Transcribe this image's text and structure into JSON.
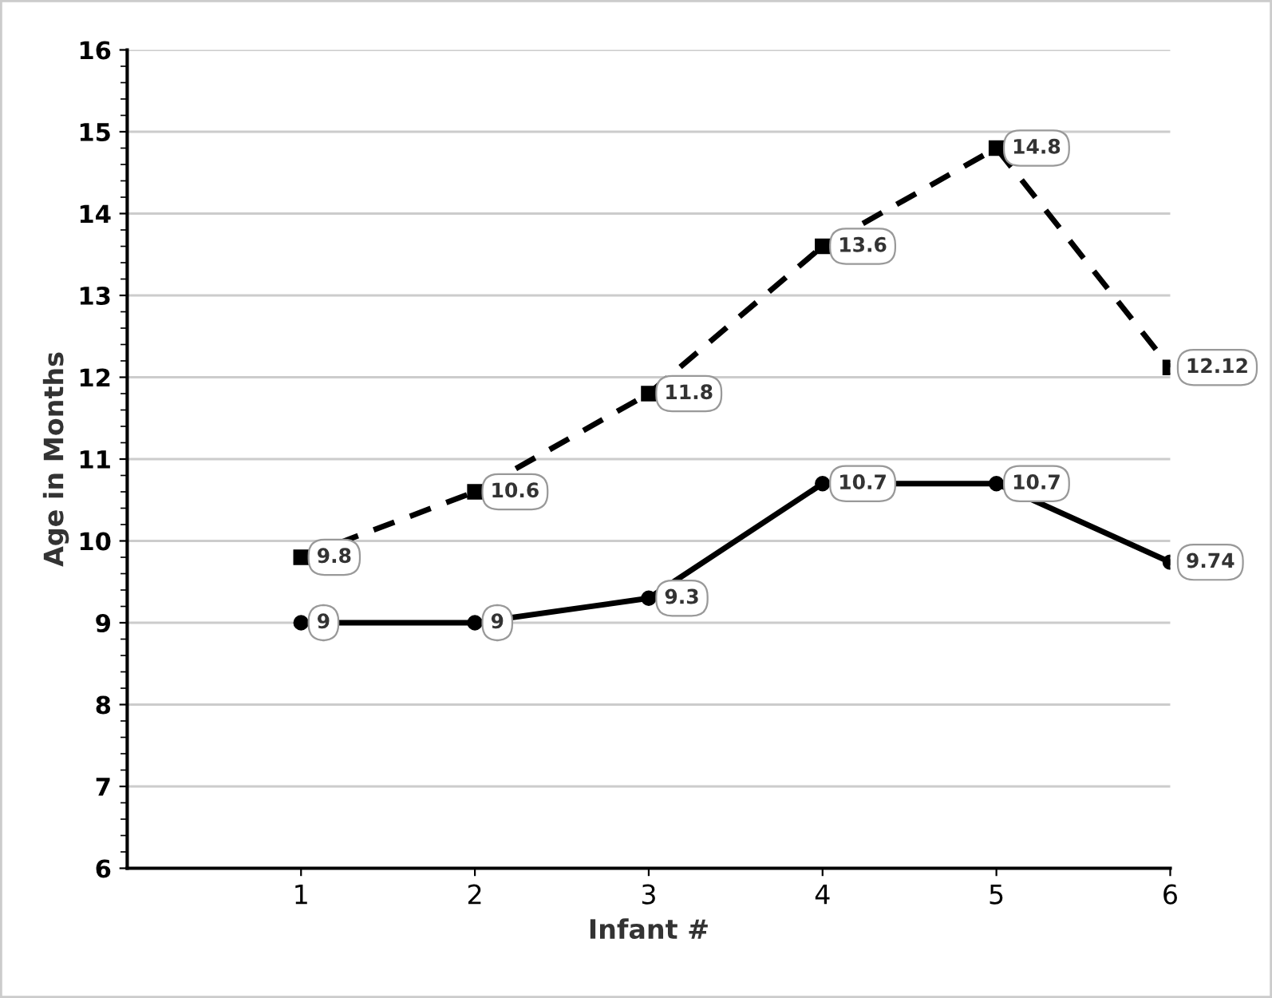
{
  "chart_data": {
    "type": "line",
    "xlabel": "Infant #",
    "ylabel": "Age in Months",
    "x": [
      1,
      2,
      3,
      4,
      5,
      6
    ],
    "series": [
      {
        "color": "#000000",
        "marker": "square",
        "line_style": "dashed",
        "values": [
          9.8,
          10.6,
          11.8,
          13.6,
          14.8,
          12.12
        ]
      },
      {
        "color": "#000000",
        "marker": "circle",
        "line_style": "solid",
        "values": [
          9,
          9,
          9.3,
          10.7,
          10.7,
          9.74
        ]
      }
    ],
    "xlim": [
      0,
      6
    ],
    "xticks": [
      1,
      2,
      3,
      4,
      5,
      6
    ],
    "ylim": [
      6,
      16
    ],
    "yticks": [
      6,
      7,
      8,
      9,
      10,
      11,
      12,
      13,
      14,
      15,
      16
    ],
    "grid": "y",
    "data_labels": true,
    "legend": false
  }
}
